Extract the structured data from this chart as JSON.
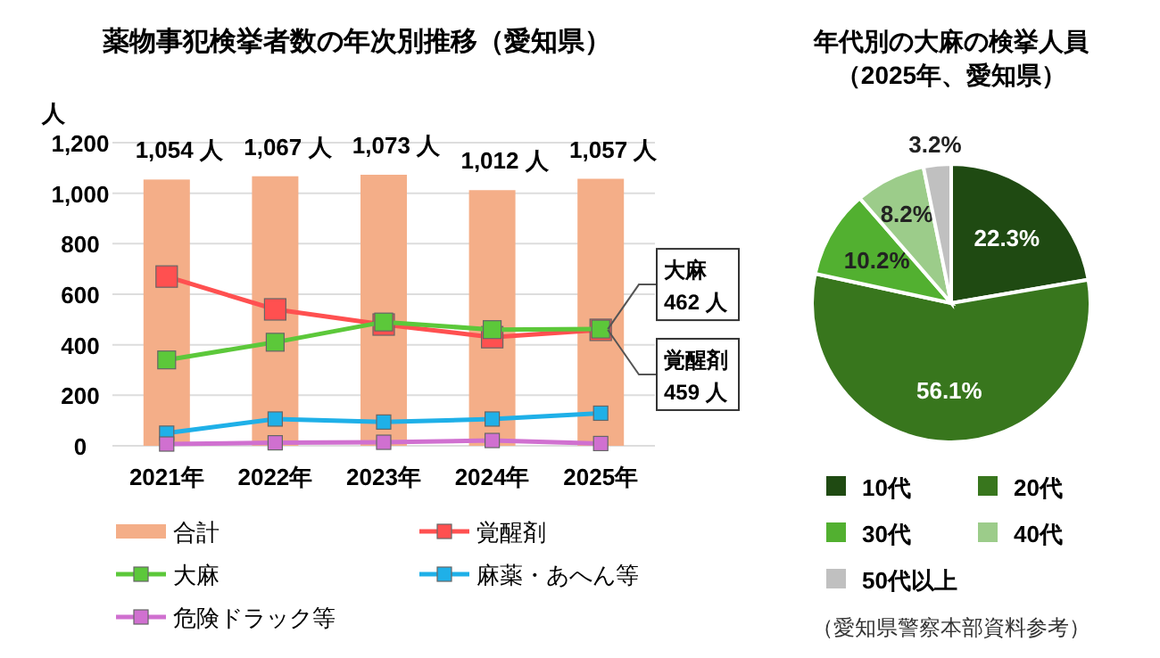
{
  "chart_data": [
    {
      "type": "line",
      "title": "薬物事犯検挙者数の年次別推移（愛知県）",
      "ylabel": "人",
      "categories": [
        "2021年",
        "2022年",
        "2023年",
        "2024年",
        "2025年"
      ],
      "series": [
        {
          "name": "合計",
          "type": "bar",
          "color": "#f4ae88",
          "values": [
            1054,
            1067,
            1073,
            1012,
            1057
          ],
          "value_labels": [
            "1,054 人",
            "1,067 人",
            "1,073 人",
            "1,012 人",
            "1,057 人"
          ]
        },
        {
          "name": "覚醒剤",
          "color": "#ff5050",
          "values": [
            670,
            540,
            480,
            430,
            459
          ]
        },
        {
          "name": "大麻",
          "color": "#5cc83a",
          "values": [
            340,
            410,
            490,
            460,
            462
          ]
        },
        {
          "name": "麻薬・あへん等",
          "color": "#1fb0e8",
          "values": [
            50,
            106,
            94,
            106,
            129
          ]
        },
        {
          "name": "危険ドラック等",
          "color": "#d070d0",
          "values": [
            7,
            12,
            14,
            21,
            9
          ]
        }
      ],
      "ylim": [
        0,
        1200
      ],
      "yticks": [
        0,
        200,
        400,
        600,
        800,
        {
          "value": 1000,
          "label": "1,000"
        },
        {
          "value": 1200,
          "label": "1,200"
        }
      ],
      "grid": "y",
      "marker": "square",
      "legend": "bottom",
      "annotations": [
        {
          "text": "大麻",
          "x": "2025年",
          "y": 462
        },
        {
          "text": "462 人",
          "x": "2025年",
          "y": 462
        },
        {
          "text": "覚醒剤",
          "x": "2025年",
          "y": 459
        },
        {
          "text": "459 人",
          "x": "2025年",
          "y": 459
        }
      ]
    },
    {
      "type": "pie",
      "title": "年代別の大麻の検挙人員",
      "subtitle": "（2025年、愛知県）",
      "categories": [
        "10代",
        "20代",
        "30代",
        "40代",
        "50代以上"
      ],
      "values": [
        22.3,
        56.1,
        10.2,
        8.2,
        3.2
      ],
      "colors": [
        "#1f4a12",
        "#38761d",
        "#52b030",
        "#9ccc8a",
        "#c0c0c0"
      ],
      "value_labels": [
        "22.3%",
        "56.1%",
        "10.2%",
        "8.2%",
        "3.2%"
      ],
      "legend": "bottom",
      "annotations": [
        "（愛知県警察本部資料参考）"
      ]
    }
  ]
}
